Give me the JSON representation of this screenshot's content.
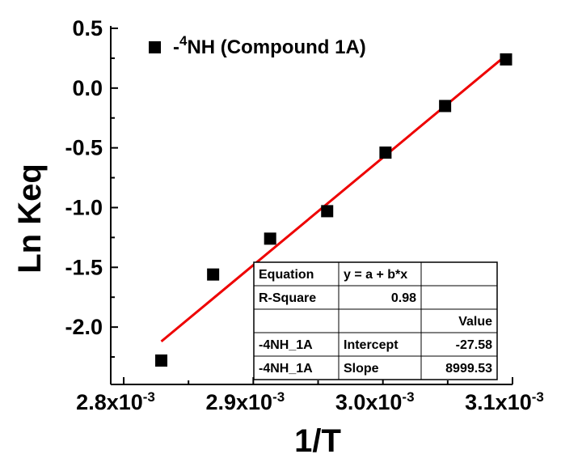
{
  "chart_data": {
    "type": "scatter",
    "xlabel": "1/T",
    "ylabel": "Ln Keq",
    "xlim": [
      0.00279,
      0.0031
    ],
    "ylim": [
      -2.48,
      0.5
    ],
    "x_ticks": [
      {
        "value": 0.0028,
        "mantissa": "2.8x10",
        "exp": "-3"
      },
      {
        "value": 0.0029,
        "mantissa": "2.9x10",
        "exp": "-3"
      },
      {
        "value": 0.003,
        "mantissa": "3.0x10",
        "exp": "-3"
      },
      {
        "value": 0.0031,
        "mantissa": "3.1x10",
        "exp": "-3"
      }
    ],
    "y_ticks": [
      {
        "value": 0.5,
        "label": "0.5"
      },
      {
        "value": 0.0,
        "label": "0.0"
      },
      {
        "value": -0.5,
        "label": "-0.5"
      },
      {
        "value": -1.0,
        "label": "-1.0"
      },
      {
        "value": -1.5,
        "label": "-1.5"
      },
      {
        "value": -2.0,
        "label": "-2.0"
      }
    ],
    "series": [
      {
        "legend_prefix": "-",
        "legend_sup": "4",
        "legend_rest": "NH (Compound 1A)",
        "marker": "square",
        "color": "#000000",
        "points": [
          {
            "x": 0.002829,
            "y": -2.28
          },
          {
            "x": 0.002869,
            "y": -1.56
          },
          {
            "x": 0.002913,
            "y": -1.26
          },
          {
            "x": 0.002957,
            "y": -1.03
          },
          {
            "x": 0.003002,
            "y": -0.54
          },
          {
            "x": 0.003048,
            "y": -0.15
          },
          {
            "x": 0.003095,
            "y": 0.24
          }
        ]
      }
    ],
    "fit_line": {
      "color": "#ee0000",
      "x_start": 0.002829,
      "x_end": 0.003095,
      "intercept": -27.58,
      "slope": 8999.53
    },
    "fit_table": {
      "rows": [
        [
          "Equation",
          "y = a + b*x",
          ""
        ],
        [
          "R-Square",
          "0.98",
          ""
        ],
        [
          "",
          "",
          "Value"
        ],
        [
          "-4NH_1A",
          "Intercept",
          "-27.58"
        ],
        [
          "-4NH_1A",
          "Slope",
          "8999.53"
        ]
      ]
    },
    "legend_position": "top-left",
    "grid": false
  }
}
